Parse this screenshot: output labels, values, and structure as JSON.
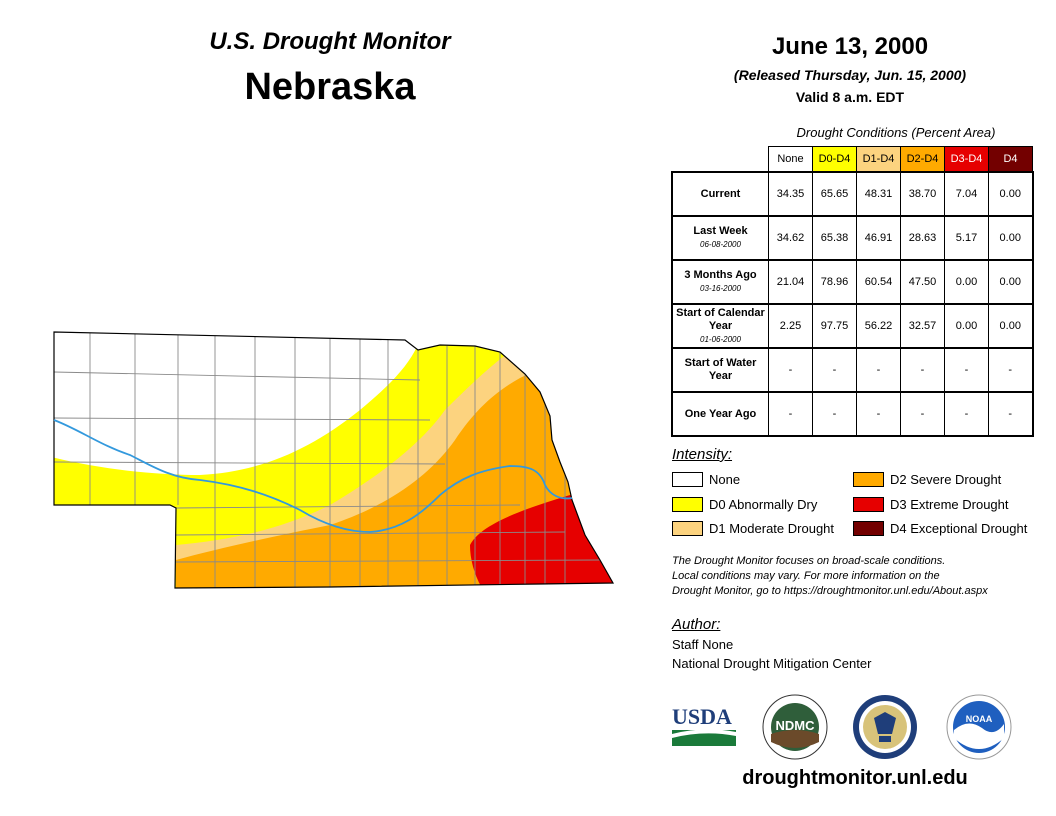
{
  "header": {
    "title": "U.S. Drought Monitor",
    "state": "Nebraska",
    "date": "June 13, 2000",
    "released": "(Released Thursday, Jun. 15, 2000)",
    "valid": "Valid 8 a.m. EDT"
  },
  "stats": {
    "caption": "Drought Conditions (Percent Area)",
    "columns": [
      {
        "label": "None",
        "bg": "#ffffff",
        "fg": "#000000"
      },
      {
        "label": "D0-D4",
        "bg": "#ffff00",
        "fg": "#000000"
      },
      {
        "label": "D1-D4",
        "bg": "#fcd37f",
        "fg": "#000000"
      },
      {
        "label": "D2-D4",
        "bg": "#ffaa00",
        "fg": "#000000"
      },
      {
        "label": "D3-D4",
        "bg": "#e60000",
        "fg": "#ffffff"
      },
      {
        "label": "D4",
        "bg": "#730000",
        "fg": "#ffffff"
      }
    ],
    "rows": [
      {
        "label": "Current",
        "sub": "",
        "values": [
          "34.35",
          "65.65",
          "48.31",
          "38.70",
          "7.04",
          "0.00"
        ]
      },
      {
        "label": "Last Week",
        "sub": "06-08-2000",
        "values": [
          "34.62",
          "65.38",
          "46.91",
          "28.63",
          "5.17",
          "0.00"
        ]
      },
      {
        "label": "3 Months Ago",
        "sub": "03-16-2000",
        "values": [
          "21.04",
          "78.96",
          "60.54",
          "47.50",
          "0.00",
          "0.00"
        ]
      },
      {
        "label": "Start of Calendar Year",
        "sub": "01-06-2000",
        "values": [
          "2.25",
          "97.75",
          "56.22",
          "32.57",
          "0.00",
          "0.00"
        ]
      },
      {
        "label": "Start of Water Year",
        "sub": "",
        "values": [
          "-",
          "-",
          "-",
          "-",
          "-",
          "-"
        ]
      },
      {
        "label": "One Year Ago",
        "sub": "",
        "values": [
          "-",
          "-",
          "-",
          "-",
          "-",
          "-"
        ]
      }
    ]
  },
  "legend": {
    "title": "Intensity:",
    "items": [
      {
        "label": "None",
        "color": "#ffffff"
      },
      {
        "label": "D0 Abnormally Dry",
        "color": "#ffff00"
      },
      {
        "label": "D1 Moderate Drought",
        "color": "#fcd37f"
      },
      {
        "label": "D2 Severe Drought",
        "color": "#ffaa00"
      },
      {
        "label": "D3 Extreme Drought",
        "color": "#e60000"
      },
      {
        "label": "D4 Exceptional Drought",
        "color": "#730000"
      }
    ]
  },
  "note": {
    "line1": "The Drought Monitor focuses on broad-scale conditions.",
    "line2": "Local conditions may vary. For more information on the",
    "line3": "Drought Monitor, go to https://droughtmonitor.unl.edu/About.aspx"
  },
  "author": {
    "title": "Author:",
    "name": "Staff None",
    "org": "National Drought Mitigation Center"
  },
  "logos": {
    "usda": "USDA",
    "ndmc": "NDMC",
    "noaa": "NOAA"
  },
  "footer": {
    "site": "droughtmonitor.unl.edu"
  },
  "map": {
    "river_color": "#3399dd"
  }
}
